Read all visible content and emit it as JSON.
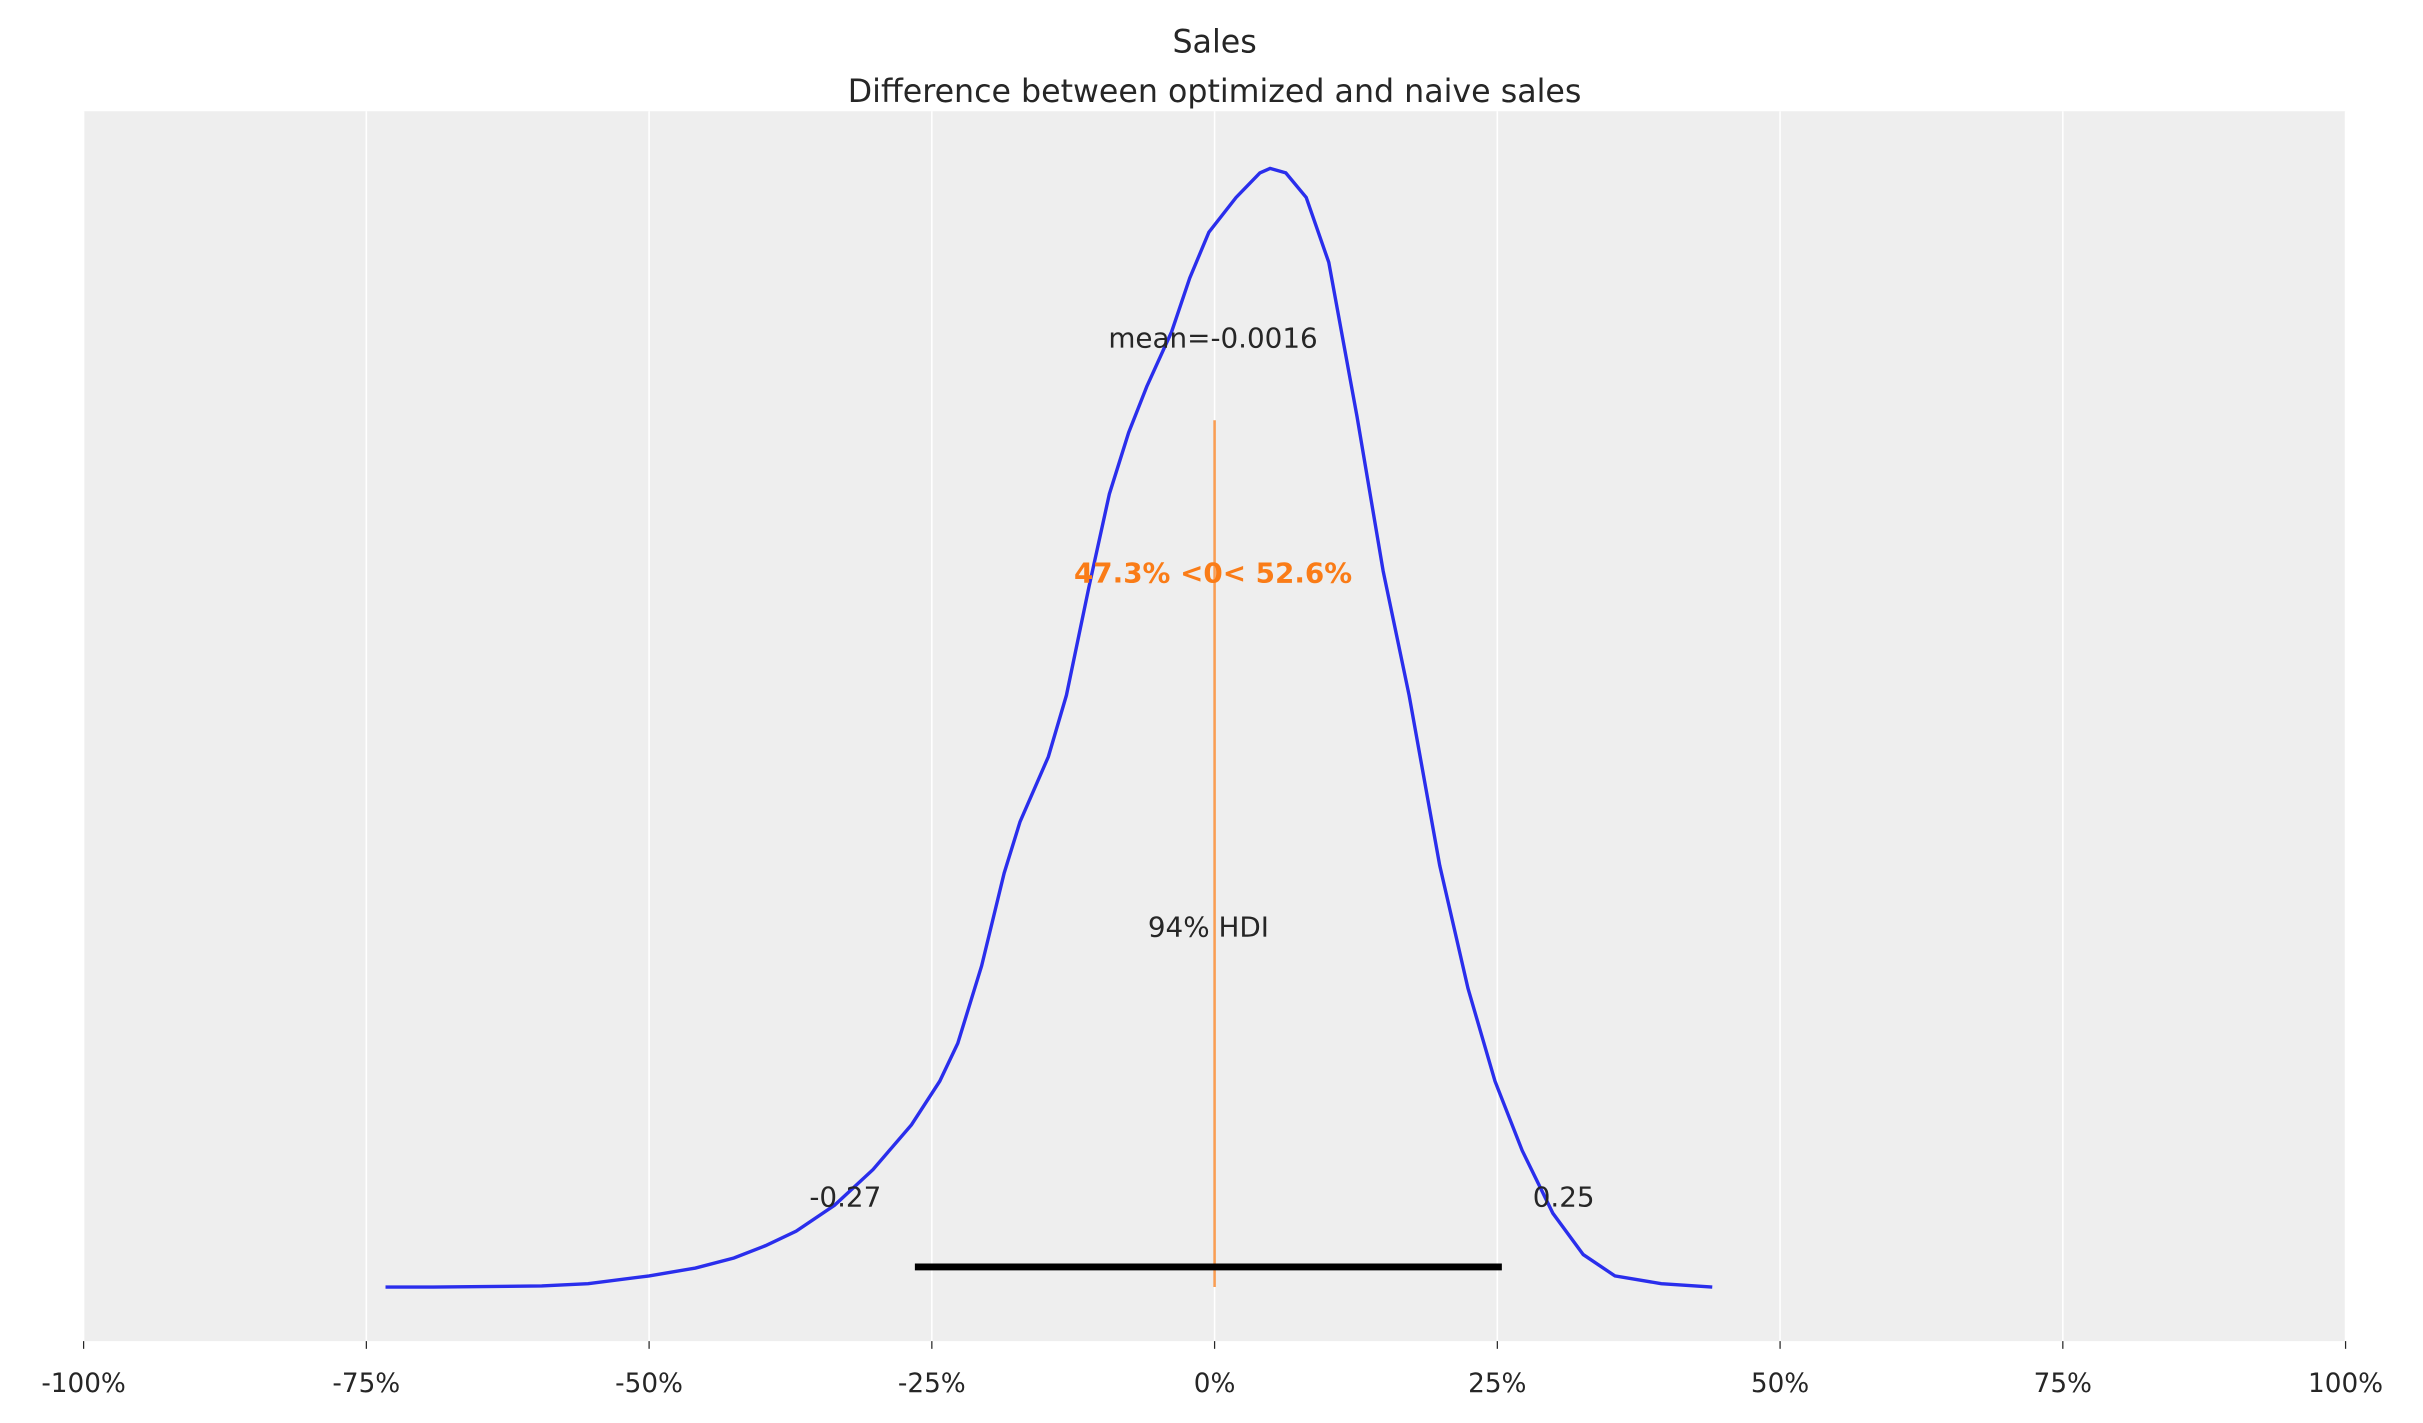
{
  "chart_data": {
    "type": "line",
    "title": "Sales",
    "subtitle": "Difference between optimized and naive sales",
    "xlabel": "",
    "ylabel": "",
    "xlim": [
      -1.0,
      1.0
    ],
    "x_tick_values": [
      -1.0,
      -0.75,
      -0.5,
      -0.25,
      0,
      0.25,
      0.5,
      0.75,
      1.0
    ],
    "x_tick_labels": [
      "-100%",
      "-75%",
      "-50%",
      "-25%",
      "0%",
      "25%",
      "50%",
      "75%",
      "100%"
    ],
    "grid": "vertical",
    "background": "#eeeeee",
    "series": [
      {
        "color": "#2a2eec",
        "x": [
          -0.733,
          -0.691,
          -0.595,
          -0.554,
          -0.5,
          -0.459,
          -0.425,
          -0.397,
          -0.37,
          -0.336,
          -0.302,
          -0.268,
          -0.243,
          -0.227,
          -0.206,
          -0.186,
          -0.172,
          -0.147,
          -0.131,
          -0.111,
          -0.093,
          -0.076,
          -0.06,
          -0.038,
          -0.022,
          -0.005,
          0.019,
          0.04,
          0.049,
          0.063,
          0.081,
          0.101,
          0.126,
          0.149,
          0.172,
          0.199,
          0.224,
          0.248,
          0.272,
          0.299,
          0.326,
          0.354,
          0.395,
          0.44
        ],
        "density_relative": [
          0,
          0,
          0.001,
          0.003,
          0.01,
          0.017,
          0.026,
          0.037,
          0.05,
          0.073,
          0.105,
          0.145,
          0.184,
          0.218,
          0.287,
          0.37,
          0.416,
          0.474,
          0.529,
          0.626,
          0.709,
          0.764,
          0.805,
          0.854,
          0.902,
          0.943,
          0.974,
          0.996,
          1.0,
          0.996,
          0.974,
          0.916,
          0.778,
          0.64,
          0.529,
          0.377,
          0.267,
          0.184,
          0.122,
          0.066,
          0.029,
          0.01,
          0.003,
          0
        ]
      }
    ],
    "mean_label": "mean=-0.0016",
    "reference_value": 0,
    "reference_color": "#fa7c17",
    "reference_label": "47.3% <0< 52.6%",
    "hdi": {
      "label": "94% HDI",
      "low": -0.265,
      "high": 0.254,
      "low_label": "-0.27",
      "high_label": "0.25",
      "color": "#000000"
    }
  }
}
